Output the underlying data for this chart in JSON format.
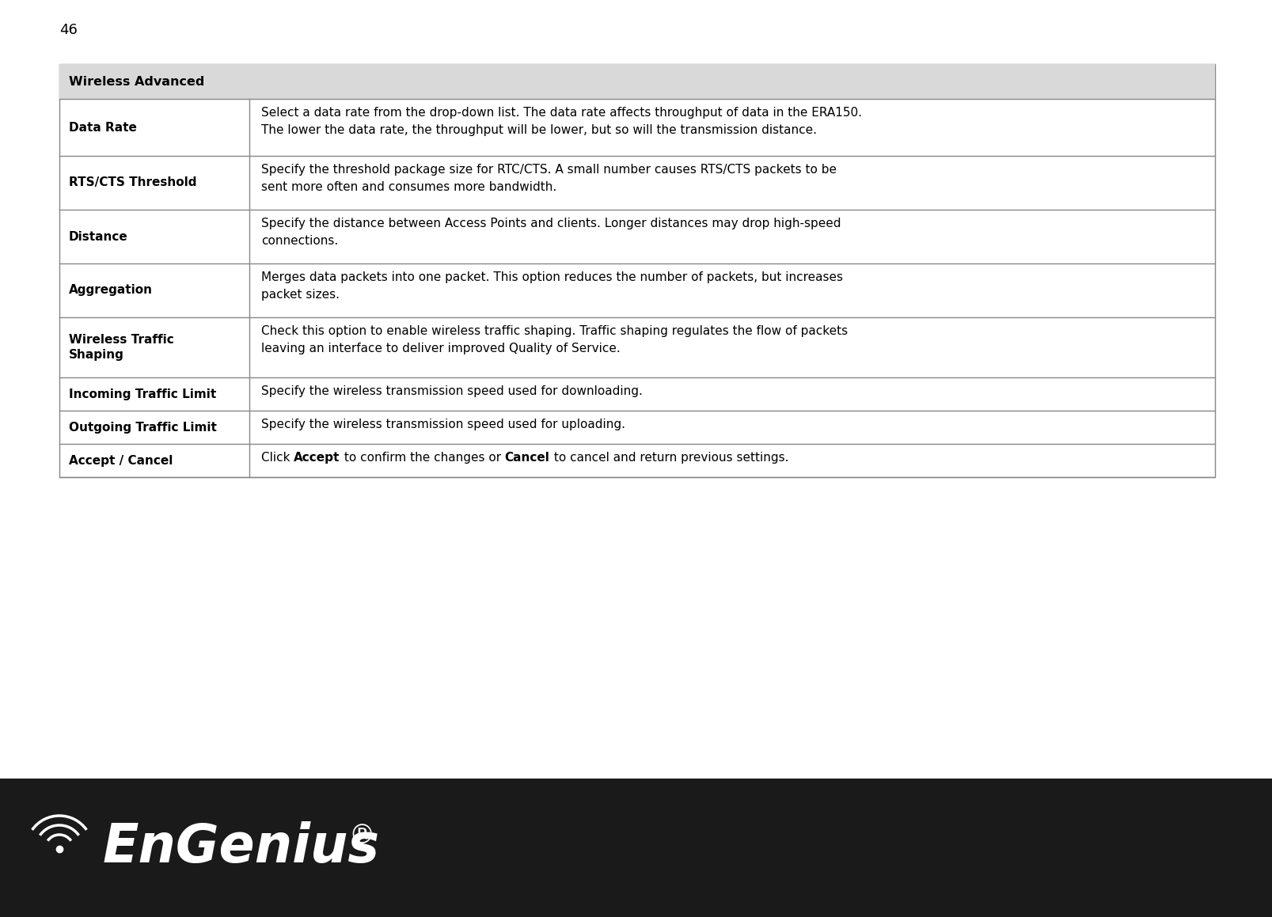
{
  "page_number": "46",
  "page_bg": "#ffffff",
  "footer_bg": "#1a1a1a",
  "table_header": "Wireless Advanced",
  "table_header_bg": "#d9d9d9",
  "table_border_color": "#888888",
  "rows": [
    {
      "label": "Data Rate",
      "desc": "Select a data rate from the drop-down list. The data rate affects throughput of data in the ERA150.\nThe lower the data rate, the throughput will be lower, but so will the transmission distance.",
      "desc_parts": [
        {
          "text": "Select a data rate from the drop-down list. The data rate affects throughput of data in the ERA150.\nThe lower the data rate, the throughput will be lower, but so will the transmission distance.",
          "bold": false
        }
      ]
    },
    {
      "label": "RTS/CTS Threshold",
      "desc": "Specify the threshold package size for RTC/CTS. A small number causes RTS/CTS packets to be\nsent more often and consumes more bandwidth.",
      "desc_parts": [
        {
          "text": "Specify the threshold package size for RTC/CTS. A small number causes RTS/CTS packets to be\nsent more often and consumes more bandwidth.",
          "bold": false
        }
      ]
    },
    {
      "label": "Distance",
      "desc": "Specify the distance between Access Points and clients. Longer distances may drop high-speed\nconnections.",
      "desc_parts": [
        {
          "text": "Specify the distance between Access Points and clients. Longer distances may drop high-speed\nconnections.",
          "bold": false
        }
      ]
    },
    {
      "label": "Aggregation",
      "desc": "Merges data packets into one packet. This option reduces the number of packets, but increases\npacket sizes.",
      "desc_parts": [
        {
          "text": "Merges data packets into one packet. This option reduces the number of packets, but increases\npacket sizes.",
          "bold": false
        }
      ]
    },
    {
      "label": "Wireless Traffic\nShaping",
      "desc": "Check this option to enable wireless traffic shaping. Traffic shaping regulates the flow of packets\nleaving an interface to deliver improved Quality of Service.",
      "desc_parts": [
        {
          "text": "Check this option to enable wireless traffic shaping. Traffic shaping regulates the flow of packets\nleaving an interface to deliver improved Quality of Service.",
          "bold": false
        }
      ]
    },
    {
      "label": "Incoming Traffic Limit",
      "desc": "Specify the wireless transmission speed used for downloading.",
      "desc_parts": [
        {
          "text": "Specify the wireless transmission speed used for downloading.",
          "bold": false
        }
      ]
    },
    {
      "label": "Outgoing Traffic Limit",
      "desc": "Specify the wireless transmission speed used for uploading.",
      "desc_parts": [
        {
          "text": "Specify the wireless transmission speed used for uploading.",
          "bold": false
        }
      ]
    },
    {
      "label": "Accept / Cancel",
      "desc": "Click Accept to confirm the changes or Cancel to cancel and return previous settings.",
      "desc_parts": [
        {
          "text": "Click ",
          "bold": false
        },
        {
          "text": "Accept",
          "bold": true
        },
        {
          "text": " to confirm the changes or ",
          "bold": false
        },
        {
          "text": "Cancel",
          "bold": true
        },
        {
          "text": " to cancel and return previous settings.",
          "bold": false
        }
      ]
    }
  ],
  "font_size": 11.0,
  "label_font_size": 11.0,
  "header_font_size": 11.5,
  "page_num_fontsize": 13
}
